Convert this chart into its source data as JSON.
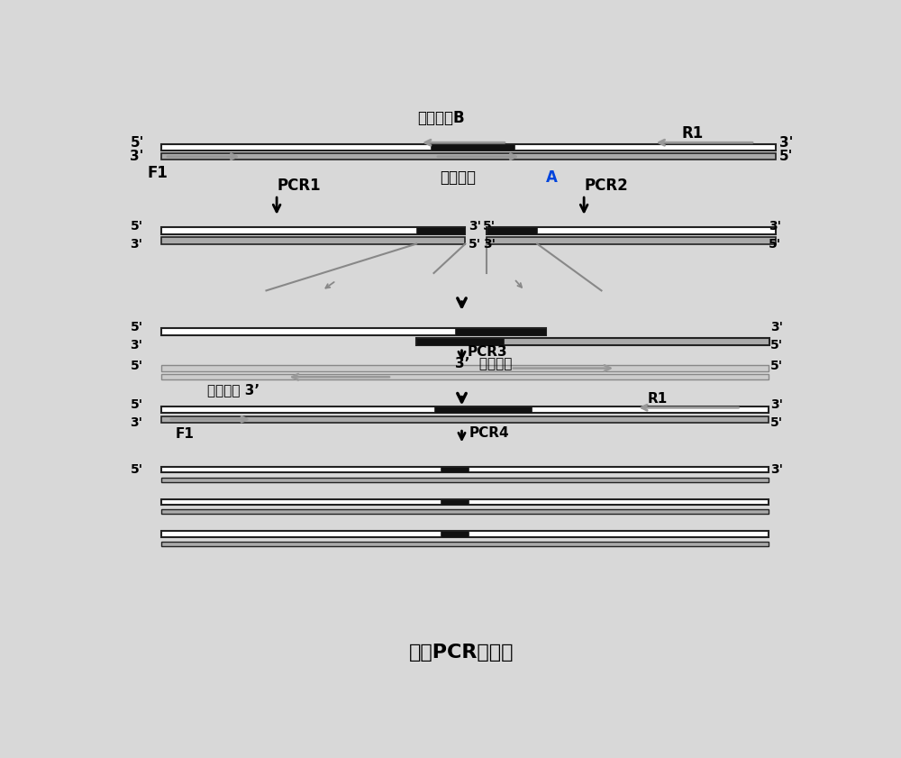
{
  "bg_color": "#d8d8d8",
  "title": "重组PCR示意图",
  "bar_white": "#ffffff",
  "bar_gray": "#aaaaaa",
  "bar_black": "#111111",
  "bar_edge": "#222222",
  "arrow_gray": "#888888",
  "text_black": "#000000",
  "label_B": "重叠引物B",
  "label_A": "重叠引物",
  "label_A2": "A",
  "label_F1": "F1",
  "label_R1": "R1",
  "label_PCR1": "PCR1",
  "label_PCR2": "PCR2",
  "label_PCR3": "PCR3",
  "label_PCR4": "PCR4",
  "label_ext1": "3’  延伸方向",
  "label_ext2": "延伸方向 3’"
}
